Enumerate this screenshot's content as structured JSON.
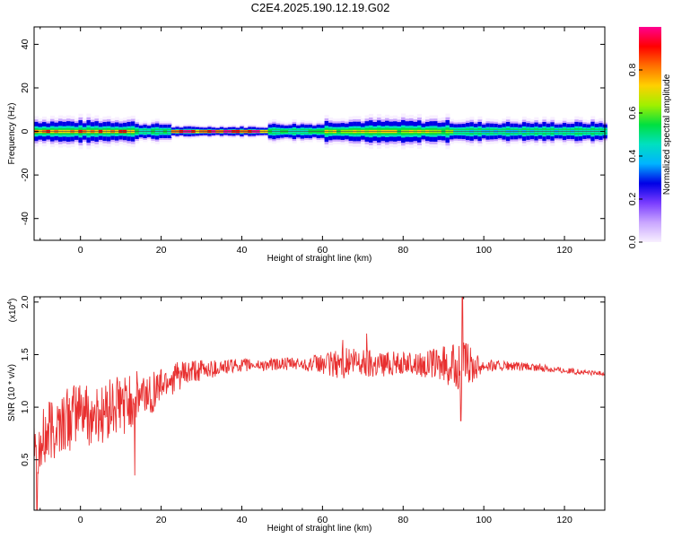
{
  "title": "C2E4.2025.190.12.19.G02",
  "chart_data": [
    {
      "type": "heatmap",
      "xlabel": "Height of straight line (km)",
      "ylabel": "Frequency (Hz)",
      "xlim": [
        -11.5,
        130
      ],
      "ylim": [
        -50,
        48
      ],
      "x_ticks": [
        0,
        20,
        40,
        60,
        80,
        100,
        120
      ],
      "y_ticks": [
        -40,
        -20,
        0,
        20,
        40
      ],
      "x_tick_labels": [
        "0",
        "20",
        "40",
        "60",
        "80",
        "100",
        "120"
      ],
      "y_tick_labels": [
        "-40",
        "-20",
        "0",
        "20",
        "40"
      ],
      "colorbar": {
        "label": "Normalized spectral amplitude",
        "range": [
          0,
          1
        ],
        "ticks": [
          0.0,
          0.2,
          0.4,
          0.6,
          0.8
        ],
        "tick_labels": [
          "0.0",
          "0.2",
          "0.4",
          "0.6",
          "0.8"
        ],
        "colors": [
          "#f8f0ff",
          "#c9a6ff",
          "#7a3cff",
          "#0000e6",
          "#00b4ff",
          "#00e0c0",
          "#00e040",
          "#a0f000",
          "#ffd000",
          "#ff7000",
          "#ff0000",
          "#ff0090"
        ]
      },
      "band": {
        "center_hz": 0,
        "segments": [
          {
            "x_start": -11.5,
            "x_end": 13,
            "half_width_hz": 3.5,
            "peak": 0.9
          },
          {
            "x_start": 13,
            "x_end": 22,
            "half_width_hz": 2.5,
            "peak": 0.55
          },
          {
            "x_start": 22,
            "x_end": 46,
            "half_width_hz": 1.5,
            "peak": 1.0
          },
          {
            "x_start": 46,
            "x_end": 60,
            "half_width_hz": 2.5,
            "peak": 0.6
          },
          {
            "x_start": 60,
            "x_end": 92,
            "half_width_hz": 3.5,
            "peak": 0.75
          },
          {
            "x_start": 92,
            "x_end": 130,
            "half_width_hz": 3.0,
            "peak": 0.5
          }
        ]
      }
    },
    {
      "type": "line",
      "xlabel": "Height of straight line (km)",
      "ylabel": "SNR (10 * v/v)",
      "y_multiplier": "(x10",
      "y_multiplier_exp": "4",
      "y_multiplier_close": ")",
      "xlim": [
        -11.5,
        130
      ],
      "ylim": [
        0.02,
        2.05
      ],
      "x_ticks": [
        0,
        20,
        40,
        60,
        80,
        100,
        120
      ],
      "y_ticks": [
        0.5,
        1.0,
        1.5,
        2.0
      ],
      "x_tick_labels": [
        "0",
        "20",
        "40",
        "60",
        "80",
        "100",
        "120"
      ],
      "y_tick_labels": [
        "0.5",
        "1.0",
        "1.5",
        "2.0"
      ],
      "color": "#e83030",
      "profile": {
        "x": [
          -11.5,
          -10,
          -8,
          -5,
          -2,
          0,
          3,
          6,
          9,
          12,
          15,
          18,
          20,
          22,
          25,
          28,
          30,
          35,
          40,
          45,
          50,
          55,
          60,
          63,
          65,
          70,
          75,
          80,
          85,
          88,
          91,
          93,
          94.5,
          96,
          100,
          105,
          110,
          115,
          120,
          125,
          130
        ],
        "y": [
          0.9,
          0.6,
          0.75,
          0.85,
          0.9,
          1.0,
          0.9,
          0.95,
          1.0,
          1.05,
          1.1,
          1.15,
          1.22,
          1.27,
          1.3,
          1.33,
          1.35,
          1.38,
          1.4,
          1.4,
          1.41,
          1.41,
          1.41,
          1.41,
          1.42,
          1.42,
          1.42,
          1.42,
          1.41,
          1.41,
          1.4,
          1.38,
          1.38,
          1.4,
          1.4,
          1.39,
          1.38,
          1.37,
          1.35,
          1.33,
          1.32
        ]
      },
      "noise_amplitude": {
        "x": [
          -11.5,
          0,
          10,
          15,
          20,
          30,
          40,
          55,
          60,
          65,
          72,
          80,
          88,
          92,
          95,
          100,
          110,
          130
        ],
        "amp": [
          0.35,
          0.3,
          0.3,
          0.25,
          0.18,
          0.1,
          0.06,
          0.06,
          0.1,
          0.15,
          0.15,
          0.1,
          0.15,
          0.2,
          0.25,
          0.06,
          0.04,
          0.02
        ]
      },
      "spikes": [
        {
          "x": -10.8,
          "y": 0.02
        },
        {
          "x": 13.5,
          "y": 0.35
        },
        {
          "x": 94.3,
          "y": 0.87
        },
        {
          "x": 94.7,
          "y": 2.05
        },
        {
          "x": 71,
          "y": 1.7
        },
        {
          "x": 65,
          "y": 1.64
        }
      ]
    }
  ]
}
